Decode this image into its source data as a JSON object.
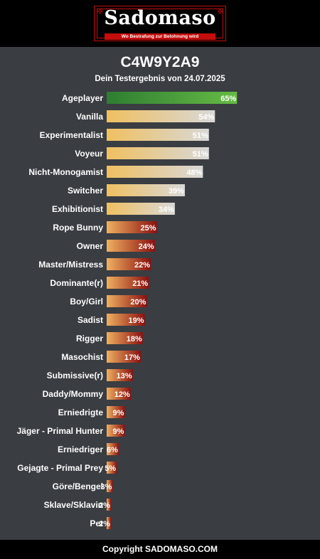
{
  "header": {
    "logo_text": "Sadomaso",
    "logo_tagline": "Wo Bestrafung zur Belohnung wird"
  },
  "result": {
    "title": "C4W9Y2A9",
    "subtitle": "Dein Testergebnis von 24.07.2025"
  },
  "footer": {
    "copyright": "Copyright SADOMASO.COM"
  },
  "colors": {
    "background": "#3a3d42",
    "header_bg": "#000000",
    "brand_red": "#c40d0d",
    "bar_high_start": "#2e7d32",
    "bar_high_end": "#66bb44",
    "bar_mid_start": "#f0c060",
    "bar_mid_end": "#d8d8d8",
    "bar_low_start": "#f0b060",
    "bar_low_end": "#8b1010"
  },
  "chart_data": {
    "type": "bar",
    "orientation": "horizontal",
    "categories": [
      "Ageplayer",
      "Vanilla",
      "Experimentalist",
      "Voyeur",
      "Nicht-Monogamist",
      "Switcher",
      "Exhibitionist",
      "Rope Bunny",
      "Owner",
      "Master/Mistress",
      "Dominante(r)",
      "Boy/Girl",
      "Sadist",
      "Rigger",
      "Masochist",
      "Submissive(r)",
      "Daddy/Mommy",
      "Erniedrigte",
      "Jäger - Primal Hunter",
      "Erniedriger",
      "Gejagte - Primal Prey",
      "Göre/Bengel",
      "Sklave/Sklavin",
      "Pet"
    ],
    "values": [
      65,
      54,
      51,
      51,
      48,
      39,
      34,
      25,
      24,
      22,
      21,
      20,
      19,
      18,
      17,
      13,
      12,
      9,
      9,
      6,
      5,
      3,
      2,
      2
    ],
    "value_labels": [
      "65%",
      "54%",
      "51%",
      "51%",
      "48%",
      "39%",
      "34%",
      "25%",
      "24%",
      "22%",
      "21%",
      "20%",
      "19%",
      "18%",
      "17%",
      "13%",
      "12%",
      "9%",
      "9%",
      "6%",
      "5%",
      "3%",
      "2%",
      "2%"
    ],
    "xlim": [
      0,
      100
    ],
    "grid": false,
    "legend": "none"
  }
}
